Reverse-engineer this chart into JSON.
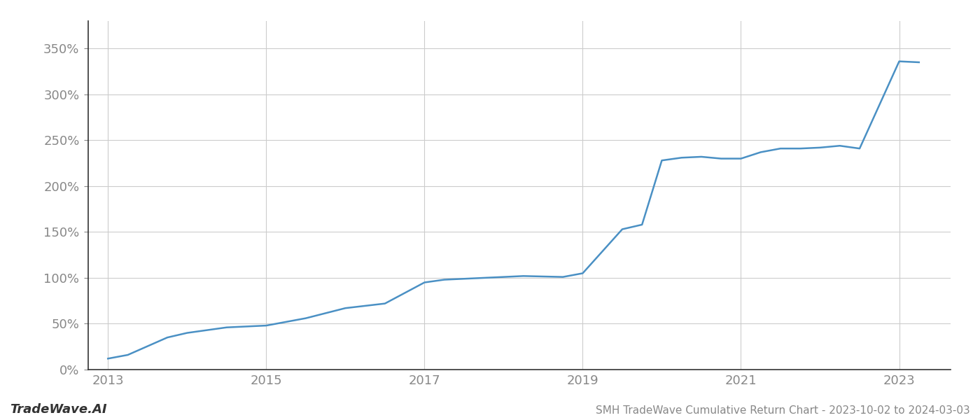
{
  "title": "SMH TradeWave Cumulative Return Chart - 2023-10-02 to 2024-03-03",
  "footer_left": "TradeWave.AI",
  "line_color": "#4a90c4",
  "line_width": 1.8,
  "background_color": "#ffffff",
  "grid_color": "#cccccc",
  "x_years": [
    2013.0,
    2013.25,
    2013.75,
    2014.0,
    2014.5,
    2015.0,
    2015.5,
    2016.0,
    2016.5,
    2017.0,
    2017.25,
    2017.75,
    2018.0,
    2018.25,
    2018.75,
    2019.0,
    2019.5,
    2019.75,
    2020.0,
    2020.25,
    2020.5,
    2020.75,
    2021.0,
    2021.25,
    2021.5,
    2021.75,
    2022.0,
    2022.25,
    2022.5,
    2023.0,
    2023.25
  ],
  "y_values": [
    12,
    16,
    35,
    40,
    46,
    48,
    56,
    67,
    72,
    95,
    98,
    100,
    101,
    102,
    101,
    105,
    153,
    158,
    228,
    231,
    232,
    230,
    230,
    237,
    241,
    241,
    242,
    244,
    241,
    336,
    335
  ],
  "yticks": [
    0,
    50,
    100,
    150,
    200,
    250,
    300,
    350
  ],
  "xticks": [
    2013,
    2015,
    2017,
    2019,
    2021,
    2023
  ],
  "ylim": [
    0,
    380
  ],
  "xlim": [
    2012.75,
    2023.65
  ],
  "tick_color": "#888888",
  "tick_fontsize": 13,
  "spine_color": "#333333",
  "footer_fontsize": 13,
  "title_fontsize": 11
}
